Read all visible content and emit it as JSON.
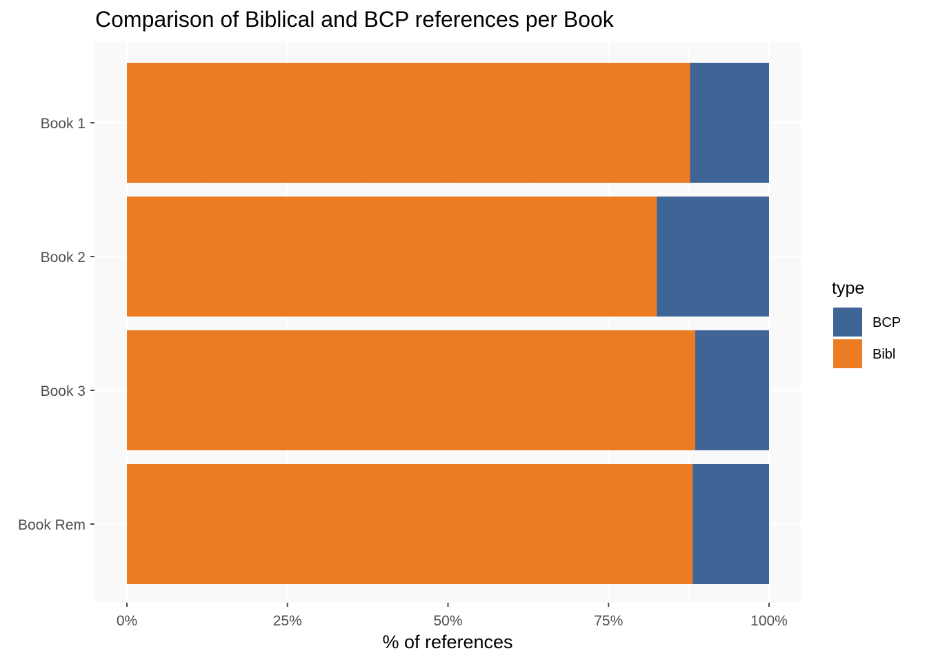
{
  "chart_data": {
    "type": "bar",
    "orientation": "horizontal",
    "stacked": "percent",
    "title": "Comparison of Biblical and BCP references per Book",
    "xlabel": "% of references",
    "ylabel": "",
    "categories": [
      "Book 1",
      "Book 2",
      "Book 3",
      "Book Rem"
    ],
    "series": [
      {
        "name": "Bibl",
        "color": "#ec7c24",
        "values": [
          87.7,
          82.5,
          88.5,
          88.1
        ]
      },
      {
        "name": "BCP",
        "color": "#3f6496",
        "values": [
          12.3,
          17.5,
          11.5,
          11.9
        ]
      }
    ],
    "xlim": [
      0,
      100
    ],
    "xticks": [
      {
        "value": 0,
        "label": "0%"
      },
      {
        "value": 25,
        "label": "25%"
      },
      {
        "value": 50,
        "label": "50%"
      },
      {
        "value": 75,
        "label": "75%"
      },
      {
        "value": 100,
        "label": "100%"
      }
    ],
    "legend": {
      "title": "type",
      "position": "right",
      "entries": [
        {
          "name": "BCP",
          "color": "#3f6496"
        },
        {
          "name": "Bibl",
          "color": "#ec7c24"
        }
      ]
    },
    "grid": true,
    "panel_background": "#f9f9f9",
    "grid_color": "#ffffff"
  }
}
